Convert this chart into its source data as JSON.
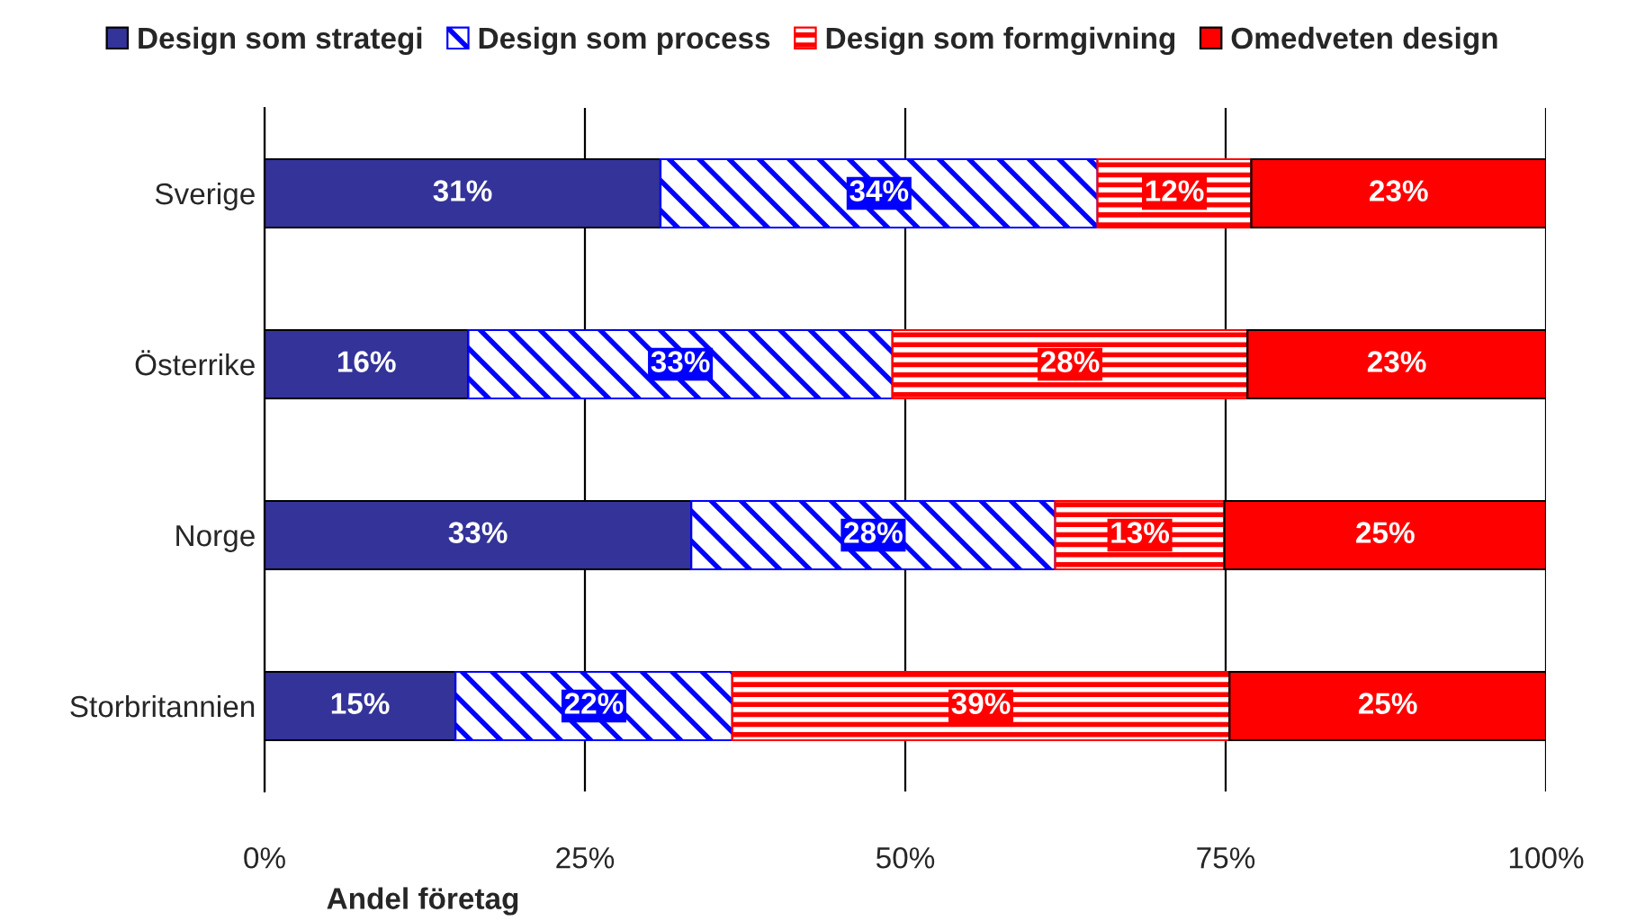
{
  "chart_data": {
    "type": "bar",
    "orientation": "horizontal",
    "stacked": true,
    "categories": [
      "Sverige",
      "Österrike",
      "Norge",
      "Storbritannien"
    ],
    "series": [
      {
        "name": "Design som strategi",
        "color": "#333399",
        "values": [
          30.9,
          15.9,
          33.3,
          14.9
        ],
        "value_labels": [
          "31%",
          "16%",
          "33%",
          "15%"
        ]
      },
      {
        "name": "Design som process",
        "color": "#0000ff",
        "values": [
          34.1,
          33.1,
          28.4,
          21.6
        ],
        "value_labels": [
          "34%",
          "33%",
          "28%",
          "22%"
        ]
      },
      {
        "name": "Design som formgivning",
        "color": "#ff0000",
        "values": [
          12.0,
          27.7,
          13.2,
          38.8
        ],
        "value_labels": [
          "12%",
          "28%",
          "13%",
          "39%"
        ]
      },
      {
        "name": "Omedveten design",
        "color": "#ff0000",
        "values": [
          23.0,
          23.3,
          25.1,
          24.7
        ],
        "value_labels": [
          "23%",
          "23%",
          "25%",
          "25%"
        ]
      }
    ],
    "xlabel": "Andel företag",
    "xlim": [
      0,
      100
    ],
    "xticks": [
      {
        "value": 0,
        "label": "0%"
      },
      {
        "value": 25,
        "label": "25%"
      },
      {
        "value": 50,
        "label": "50%"
      },
      {
        "value": 75,
        "label": "75%"
      },
      {
        "value": 100,
        "label": "100%"
      }
    ],
    "grid": "x",
    "legend": "top"
  }
}
